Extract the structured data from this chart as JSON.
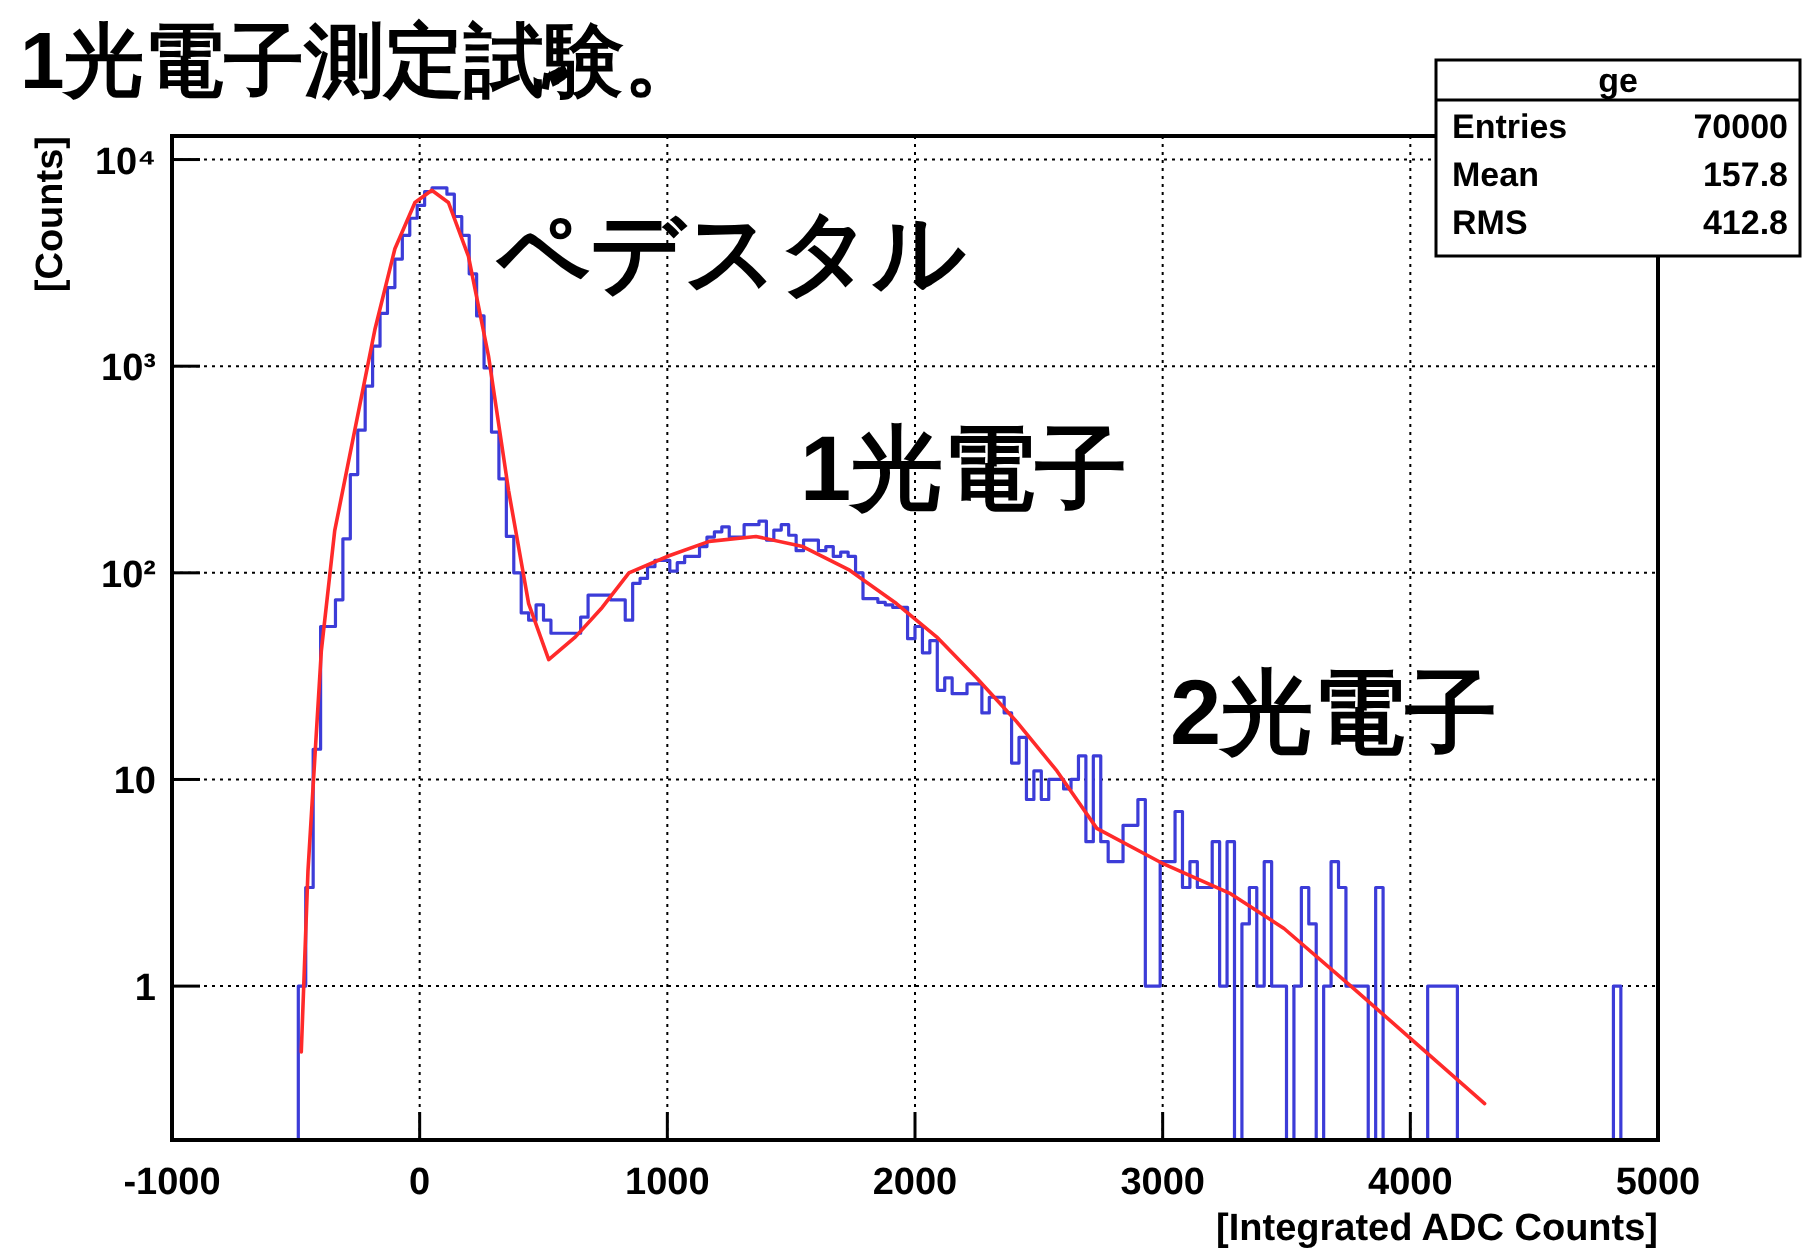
{
  "chart_data": {
    "type": "histogram",
    "title": "1光電子測定試験。",
    "xlabel": "[Integrated ADC Counts]",
    "ylabel": "[Counts]",
    "xlim": [
      -1000,
      5000
    ],
    "ylim": [
      0.18,
      13000
    ],
    "log": "y",
    "grid": true,
    "xticks": [
      -1000,
      0,
      1000,
      2000,
      3000,
      4000,
      5000
    ],
    "yticks": [
      {
        "value": 1,
        "label": "1"
      },
      {
        "value": 10,
        "label": "10"
      },
      {
        "value": 100,
        "label": "10²"
      },
      {
        "value": 1000,
        "label": "10³"
      },
      {
        "value": 10000,
        "label": "10⁴"
      }
    ],
    "annotations": [
      "ペデスタル",
      "1光電子",
      "2光電子",
      "ge",
      "Entries",
      "70000",
      "Mean",
      "157.8",
      "RMS",
      "412.8"
    ],
    "color": "#3c3cd8",
    "bins": [
      -490,
      -460,
      -430,
      -400,
      -370,
      -340,
      -310,
      -280,
      -250,
      -220,
      -190,
      -160,
      -130,
      -100,
      -70,
      -40,
      -10,
      20,
      50,
      80,
      110,
      140,
      170,
      200,
      230,
      260,
      290,
      320,
      350,
      380,
      410,
      440,
      470,
      500,
      530,
      560,
      590,
      620,
      650,
      680,
      710,
      740,
      770,
      800,
      830,
      860,
      890,
      920,
      950,
      980,
      1010,
      1040,
      1070,
      1100,
      1130,
      1160,
      1190,
      1220,
      1250,
      1280,
      1310,
      1340,
      1370,
      1400,
      1430,
      1460,
      1490,
      1520,
      1550,
      1580,
      1610,
      1640,
      1670,
      1700,
      1730,
      1760,
      1790,
      1820,
      1850,
      1880,
      1910,
      1940,
      1970,
      2000,
      2030,
      2060,
      2090,
      2120,
      2150,
      2180,
      2210,
      2240,
      2270,
      2300,
      2330,
      2360,
      2390,
      2420,
      2450,
      2480,
      2510,
      2540,
      2570,
      2600,
      2630,
      2660,
      2690,
      2720,
      2750,
      2780,
      2810,
      2840,
      2870,
      2900,
      2930,
      2960,
      2990,
      3020,
      3050,
      3080,
      3110,
      3140,
      3170,
      3200,
      3230,
      3260,
      3290,
      3320,
      3350,
      3380,
      3410,
      3440,
      3470,
      3500,
      3530,
      3560,
      3590,
      3620,
      3650,
      3680,
      3710,
      3740,
      3770,
      3800,
      3830,
      3860,
      3890,
      3920,
      3950,
      3980,
      4010,
      4040,
      4070,
      4100,
      4130,
      4160,
      4190,
      4220,
      4250,
      4280,
      4310,
      4340,
      4370,
      4400,
      4430,
      4460,
      4490,
      4520,
      4550,
      4580,
      4610,
      4640,
      4670,
      4700,
      4730,
      4760,
      4790,
      4820,
      4850
    ],
    "values": [
      1,
      3,
      14,
      55,
      55,
      74,
      146,
      299,
      490,
      800,
      1250,
      1800,
      2400,
      3300,
      4300,
      5200,
      6000,
      7000,
      7300,
      7300,
      6800,
      5300,
      4300,
      2800,
      1750,
      980,
      480,
      285,
      150,
      100,
      64,
      59,
      70,
      59,
      51,
      51,
      51,
      51,
      61,
      78,
      78,
      78,
      74,
      74,
      59,
      89,
      94,
      107,
      115,
      115,
      102,
      112,
      120,
      120,
      134,
      149,
      158,
      167,
      149,
      149,
      171,
      171,
      178,
      144,
      161,
      171,
      152,
      128,
      144,
      144,
      128,
      134,
      120,
      126,
      120,
      100,
      75,
      75,
      72,
      70,
      68,
      68,
      48,
      55,
      41,
      47,
      27,
      31,
      26,
      26,
      29,
      29,
      21,
      25,
      25,
      21,
      12,
      16,
      8,
      11,
      8,
      10,
      10,
      9,
      10,
      13,
      5,
      13,
      5,
      4,
      4,
      6,
      6,
      8,
      1,
      1,
      4,
      4,
      7,
      3,
      4,
      3,
      3,
      5,
      1,
      5,
      null,
      2,
      3,
      1,
      4,
      1,
      1,
      null,
      1,
      3,
      2,
      null,
      1,
      4,
      3,
      1,
      1,
      1,
      null,
      3,
      null,
      null,
      null,
      null,
      null,
      null,
      1,
      1,
      1,
      1,
      null,
      null,
      null,
      null,
      null,
      null,
      null,
      null,
      null,
      null,
      null,
      null,
      null,
      null,
      null,
      null,
      null,
      null,
      null,
      null,
      null,
      1
    ],
    "series": [
      {
        "type": "line",
        "color": "#ff2a2a",
        "x": [
          -478,
          -451,
          -397,
          -343,
          -262,
          -181,
          -100,
          -19,
          49,
          116,
          197,
          278,
          359,
          440,
          521,
          629,
          737,
          845,
          1007,
          1169,
          1358,
          1547,
          1736,
          1925,
          2087,
          2249,
          2411,
          2573,
          2734,
          3004,
          3274,
          3490,
          3760,
          4030,
          4300
        ],
        "values": [
          0.48,
          3.6,
          42,
          160,
          490,
          1500,
          3700,
          6200,
          7100,
          6200,
          3400,
          1120,
          250,
          71,
          38,
          49,
          68,
          100,
          121,
          142,
          150,
          134,
          103,
          71,
          49,
          31,
          19,
          11,
          5.8,
          3.9,
          2.8,
          1.9,
          1.0,
          0.52,
          0.27
        ]
      }
    ]
  }
}
